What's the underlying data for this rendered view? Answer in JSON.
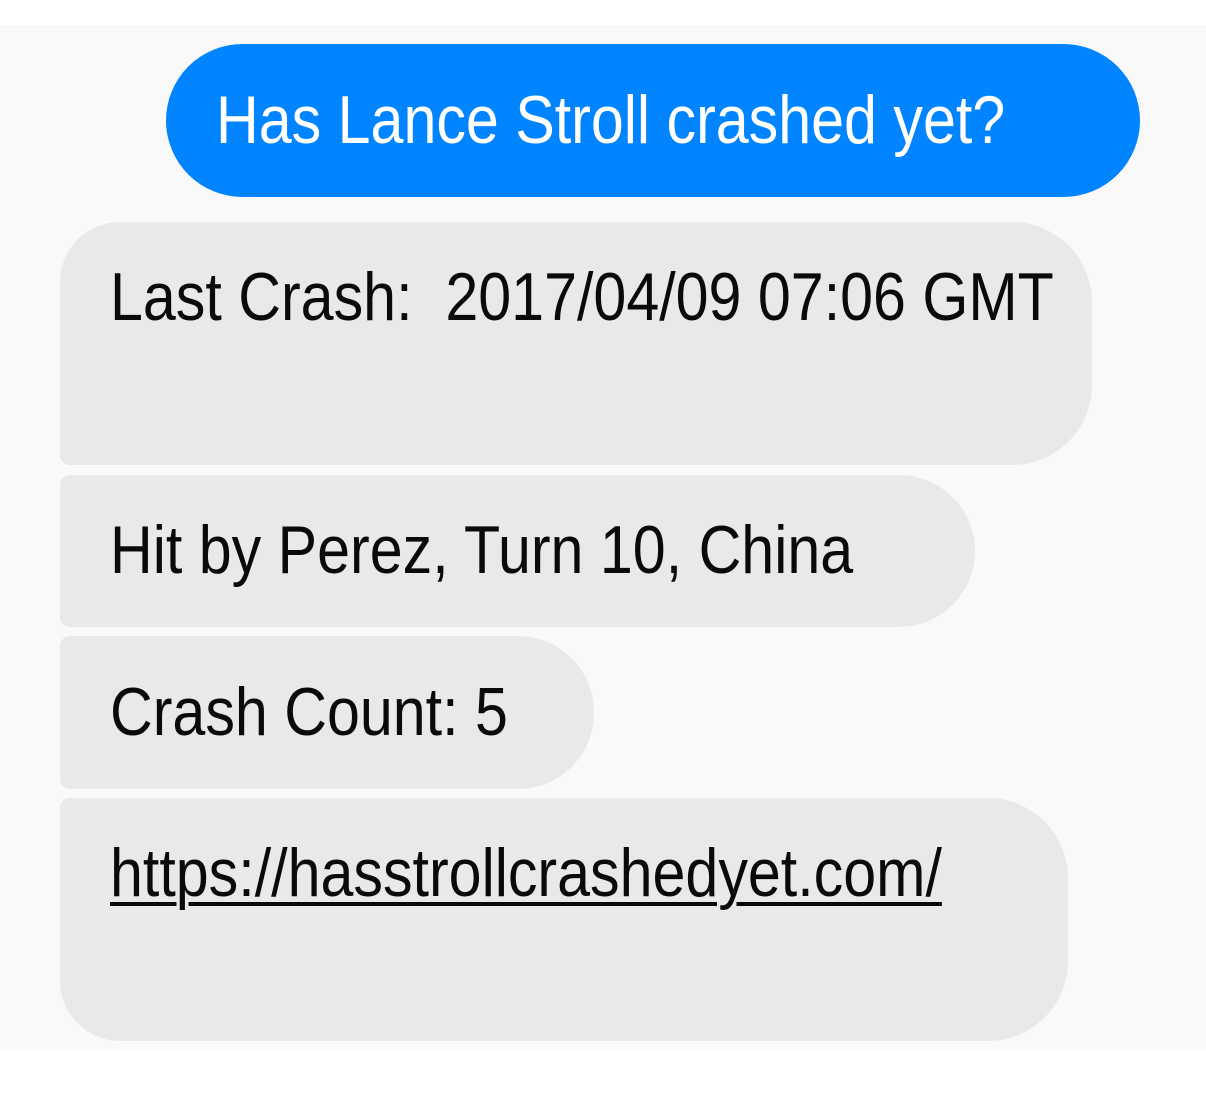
{
  "conversation": {
    "sent": [
      "Has Lance Stroll crashed yet?"
    ],
    "received": [
      "Last Crash:  2017/04/09 07:06 GMT",
      "Hit by Perez, Turn 10, China",
      "Crash Count: 5"
    ],
    "link": "https://hasstrollcrashedyet.com/"
  }
}
